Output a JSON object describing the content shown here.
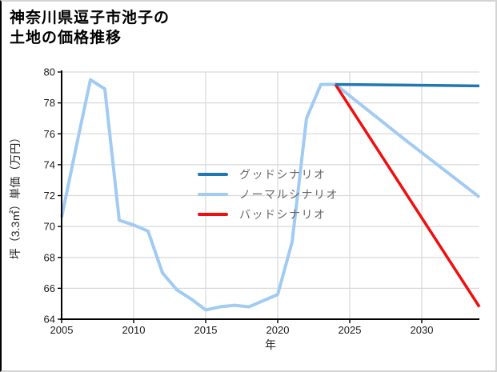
{
  "page": {
    "background": "#ffffff",
    "border_color": "#d4d4d4",
    "left_border_color": "#000000"
  },
  "chart_data": {
    "type": "line",
    "title_lines": [
      "神奈川県逗子市池子の",
      "土地の価格推移"
    ],
    "xlabel": "年",
    "ylabel": "坪（3.3㎡）単価（万円）",
    "xlim": [
      2005,
      2034
    ],
    "ylim": [
      64,
      80
    ],
    "x_ticks": [
      2005,
      2010,
      2015,
      2020,
      2025,
      2030
    ],
    "y_ticks": [
      64,
      66,
      68,
      70,
      72,
      74,
      76,
      78,
      80
    ],
    "grid": true,
    "legend_position": "center",
    "style": {
      "grid_color": "#d9d9d9",
      "spine_color": "#000000",
      "tick_label_color": "#1a1a1a",
      "axis_label_color": "#262626",
      "legend_text_color": "#666666"
    },
    "series": [
      {
        "name": "グッドシナリオ",
        "color": "#1f77b4",
        "width": 3.5,
        "x": [
          2024,
          2034
        ],
        "values": [
          79.2,
          79.1
        ]
      },
      {
        "name": "ノーマルシナリオ",
        "color": "#a1cbf2",
        "width": 4,
        "x": [
          2005,
          2006,
          2007,
          2008,
          2009,
          2010,
          2011,
          2012,
          2013,
          2014,
          2015,
          2016,
          2017,
          2018,
          2019,
          2020,
          2021,
          2022,
          2023,
          2024,
          2029,
          2034
        ],
        "values": [
          70.6,
          75.1,
          79.5,
          78.9,
          70.4,
          70.1,
          69.7,
          67.0,
          65.9,
          65.3,
          64.6,
          64.8,
          64.9,
          64.8,
          65.2,
          65.6,
          69.0,
          77.0,
          79.2,
          79.2,
          75.5,
          71.9
        ]
      },
      {
        "name": "バッドシナリオ",
        "color": "#f20d0d",
        "width": 3.5,
        "x": [
          2024,
          2034
        ],
        "values": [
          79.2,
          64.8
        ]
      }
    ]
  }
}
